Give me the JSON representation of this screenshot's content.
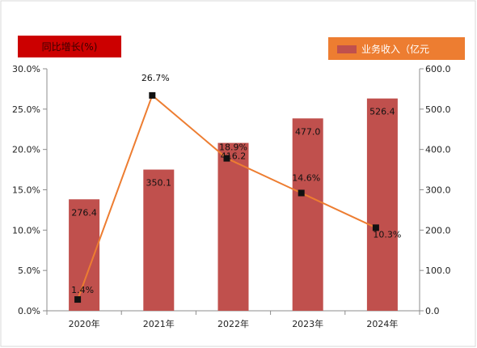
{
  "chart_data": {
    "type": "bar+line",
    "categories": [
      "2020年",
      "2021年",
      "2022年",
      "2023年",
      "2024年"
    ],
    "series": [
      {
        "name": "业务收入（亿元",
        "type": "bar",
        "axis": "right",
        "values": [
          276.4,
          350.1,
          416.2,
          477.0,
          526.4
        ],
        "labels": [
          "276.4",
          "350.1",
          "416.2",
          "477.0",
          "526.4"
        ],
        "color": "#c0504d"
      },
      {
        "name": "同比增长(%)",
        "type": "line",
        "axis": "left",
        "values": [
          1.4,
          26.7,
          18.9,
          14.6,
          10.3
        ],
        "labels": [
          "1.4%",
          "26.7%",
          "18.9%",
          "14.6%",
          "10.3%"
        ],
        "color": "#ed7d31",
        "marker_color": "#111111"
      }
    ],
    "y_left": {
      "min": 0,
      "max": 30,
      "step": 5,
      "tick_labels": [
        "0.0%",
        "5.0%",
        "10.0%",
        "15.0%",
        "20.0%",
        "25.0%",
        "30.0%"
      ]
    },
    "y_right": {
      "min": 0,
      "max": 600,
      "step": 100,
      "tick_labels": [
        "0.0",
        "100.0",
        "200.0",
        "300.0",
        "400.0",
        "500.0",
        "600.0"
      ]
    },
    "grid": false,
    "legend": {
      "line_box_color": "#cc0000",
      "bar_box_color": "#ed7d31",
      "line_placement": "top-left",
      "bar_placement": "top-right"
    }
  }
}
